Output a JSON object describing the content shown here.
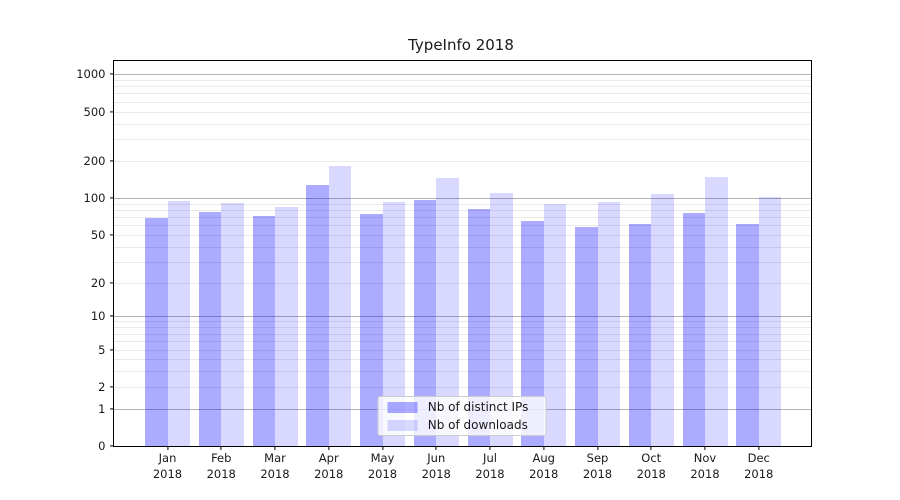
{
  "figure": {
    "background_color": "#ffffff",
    "title": "TypeInfo 2018"
  },
  "chart_data": {
    "type": "bar",
    "title": "TypeInfo 2018",
    "xlabel": "",
    "ylabel": "",
    "y_scale": "symlog",
    "ylim": [
      0,
      1300
    ],
    "grid": true,
    "legend_position": "lower center",
    "year_label": "2018",
    "months": [
      "Jan",
      "Feb",
      "Mar",
      "Apr",
      "May",
      "Jun",
      "Jul",
      "Aug",
      "Sep",
      "Oct",
      "Nov",
      "Dec"
    ],
    "categories": [
      "Jan 2018",
      "Feb 2018",
      "Mar 2018",
      "Apr 2018",
      "May 2018",
      "Jun 2018",
      "Jul 2018",
      "Aug 2018",
      "Sep 2018",
      "Oct 2018",
      "Nov 2018",
      "Dec 2018"
    ],
    "y_ticks": [
      0,
      1,
      2,
      5,
      10,
      20,
      50,
      100,
      200,
      500,
      1000
    ],
    "series": [
      {
        "name": "Nb of distinct IPs",
        "color": "rgba(0,0,255,0.33)",
        "values": [
          69,
          77,
          71,
          128,
          74,
          97,
          81,
          65,
          58,
          62,
          76,
          62
        ]
      },
      {
        "name": "Nb of downloads",
        "color": "rgba(0,0,255,0.15)",
        "values": [
          95,
          91,
          85,
          182,
          93,
          146,
          110,
          90,
          93,
          108,
          149,
          102
        ]
      }
    ],
    "colors": {
      "bar_distinct_ips": "rgba(0,0,255,0.33)",
      "bar_downloads": "rgba(0,0,255,0.15)",
      "grid_major": "#b3b3b3",
      "grid_minor": "#e9e9e9",
      "spine": "#000000",
      "text": "#1a1a1a",
      "legend_border": "#cccccc"
    }
  }
}
